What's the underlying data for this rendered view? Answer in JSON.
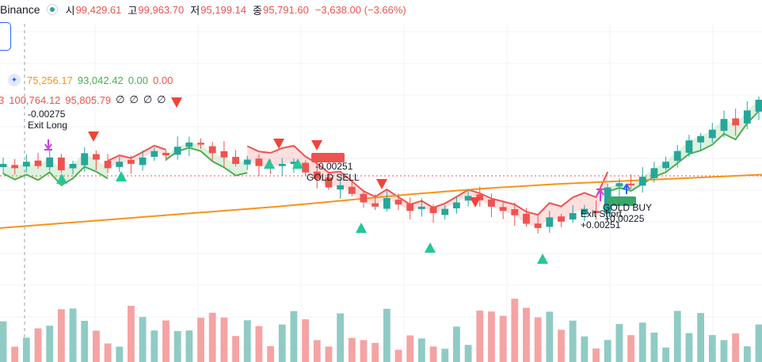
{
  "header": {
    "exchange": "Binance",
    "ohlc": [
      {
        "k": "시",
        "v": "99,429.61"
      },
      {
        "k": "고",
        "v": "99,963.70"
      },
      {
        "k": "저",
        "v": "95,199.14"
      },
      {
        "k": "종",
        "v": "95,791.60"
      }
    ],
    "change": "−3,638.00 (−3.66%)"
  },
  "indicator1": {
    "values": [
      "75,256.17",
      "93,042.42",
      "0.00",
      "0.00"
    ]
  },
  "indicator2": {
    "prefix": "3",
    "values": [
      "100,764.12",
      "95,805.79",
      "∅",
      "∅",
      "∅",
      "∅"
    ]
  },
  "annotations": [
    {
      "text": "-0.00275",
      "text2": "Exit Long"
    },
    {
      "text": "-0.00251",
      "text2": "GOLD SELL"
    },
    {
      "text": "Exit Short",
      "text2": "+0.00251"
    },
    {
      "text": "GOLD BUY",
      "text2": "+0.00225"
    }
  ],
  "colors": {
    "up": "#26a69a",
    "down": "#ef5350",
    "ema": "#f7931a",
    "band_upper": "#ef5350",
    "band_lower": "#4caf50",
    "vol_up": "#8fcbc4",
    "vol_down": "#f5a3a3",
    "arrow_up": "#20c997",
    "arrow_down": "#f44336",
    "exit_marker": "#c940e0",
    "buy_marker": "#2962ff"
  },
  "chart_data": {
    "type": "candlestick",
    "description_series": [
      "price",
      "ema",
      "trailing band upper",
      "trailing band lower",
      "volume"
    ],
    "price_close_approx": [
      99300,
      99100,
      99400,
      99200,
      99600,
      99000,
      99300,
      99800,
      99500,
      99100,
      99400,
      99300,
      99600,
      99900,
      99700,
      100100,
      100300,
      100200,
      99800,
      99600,
      99300,
      99500,
      99200,
      99100,
      99300,
      99400,
      98900,
      98600,
      98200,
      98300,
      97900,
      97500,
      97300,
      97700,
      97400,
      97100,
      97300,
      97000,
      97200,
      97500,
      97800,
      97600,
      97300,
      97100,
      96900,
      96500,
      96300,
      96800,
      96600,
      97000,
      97200,
      97000,
      98200,
      98400,
      98300,
      98700,
      99100,
      99400,
      99900,
      100400,
      100600,
      100900,
      101400,
      101100,
      101800,
      102300
    ],
    "ema_series": [
      96300,
      96550,
      96800,
      97050,
      97300,
      97600,
      97900,
      98150,
      98350,
      98500,
      98650,
      98800
    ],
    "markers": {
      "exit_long": "-0.00275",
      "gold_sell": "-0.00251",
      "exit_short": "+0.00251",
      "gold_buy": "+0.00225"
    }
  }
}
